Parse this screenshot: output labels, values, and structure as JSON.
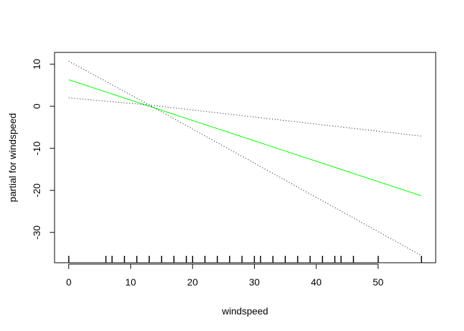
{
  "chart_data": {
    "type": "line",
    "title": "",
    "xlabel": "windspeed",
    "ylabel": "partial for windspeed",
    "xlim": [
      -2.3,
      59.3
    ],
    "ylim": [
      -37.2,
      12.8
    ],
    "grid": false,
    "x_ticks": [
      0,
      10,
      20,
      30,
      40,
      50
    ],
    "x_tick_labels": [
      "0",
      "10",
      "20",
      "30",
      "40",
      "50"
    ],
    "y_ticks": [
      -30,
      -20,
      -10,
      0,
      10
    ],
    "y_tick_labels": [
      "-30",
      "-20",
      "-10",
      "0",
      "10"
    ],
    "series": [
      {
        "style": "solid",
        "color": "#00ff00",
        "x": [
          0,
          57
        ],
        "y": [
          6.3,
          -21.3
        ]
      },
      {
        "style": "dotted",
        "color": "#000000",
        "x": [
          0,
          13,
          57
        ],
        "y": [
          10.7,
          0.3,
          -35.5
        ]
      },
      {
        "style": "dotted",
        "color": "#000000",
        "x": [
          0,
          13,
          57
        ],
        "y": [
          2.0,
          0.3,
          -7.1
        ]
      }
    ],
    "rug_x": [
      0,
      6,
      7,
      9,
      11,
      13,
      15,
      17,
      19,
      20,
      22,
      24,
      26,
      28,
      30,
      31,
      33,
      35,
      37,
      39,
      41,
      43,
      44,
      46,
      50,
      57
    ]
  }
}
